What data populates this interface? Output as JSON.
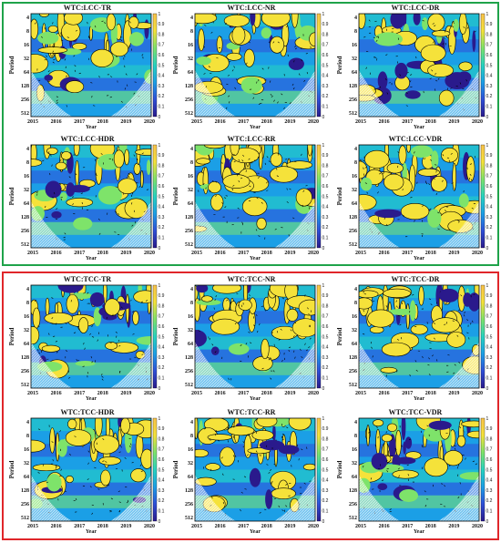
{
  "groups": [
    {
      "name": "LCC",
      "border_color": "#1fa34a"
    },
    {
      "name": "TCC",
      "border_color": "#e0262a"
    }
  ],
  "colors": {
    "colormap": [
      "#2a1a8c",
      "#2f4fd8",
      "#1c9fe6",
      "#27d3c0",
      "#7ee36a",
      "#f5e23a",
      "#f8c24a"
    ],
    "significance_contour": "#000000",
    "cone_of_influence_hatch": "#ffffff"
  },
  "chart_data": [
    {
      "type": "heatmap",
      "title": "WTC:LCC-TR",
      "xlabel": "Year",
      "ylabel": "Period",
      "x_ticks": [
        "2015",
        "2016",
        "2017",
        "2018",
        "2019",
        "2020"
      ],
      "y_ticks": [
        "4",
        "8",
        "16",
        "32",
        "64",
        "128",
        "256",
        "512"
      ],
      "y_scale": "log2",
      "colorbar_ticks": [
        "0",
        "0.1",
        "0.2",
        "0.3",
        "0.4",
        "0.5",
        "0.6",
        "0.7",
        "0.8",
        "0.9",
        "1"
      ],
      "zlim": [
        0,
        1
      ]
    },
    {
      "type": "heatmap",
      "title": "WTC:LCC-NR",
      "xlabel": "Year",
      "ylabel": "Period",
      "x_ticks": [
        "2015",
        "2016",
        "2017",
        "2018",
        "2019",
        "2020"
      ],
      "y_ticks": [
        "4",
        "8",
        "16",
        "32",
        "64",
        "128",
        "256",
        "512"
      ],
      "y_scale": "log2",
      "colorbar_ticks": [
        "0",
        "0.1",
        "0.2",
        "0.3",
        "0.4",
        "0.5",
        "0.6",
        "0.7",
        "0.8",
        "0.9",
        "1"
      ],
      "zlim": [
        0,
        1
      ]
    },
    {
      "type": "heatmap",
      "title": "WTC:LCC-DR",
      "xlabel": "Year",
      "ylabel": "Period",
      "x_ticks": [
        "2015",
        "2016",
        "2017",
        "2018",
        "2019",
        "2020"
      ],
      "y_ticks": [
        "4",
        "8",
        "16",
        "32",
        "64",
        "128",
        "256",
        "512"
      ],
      "y_scale": "log2",
      "colorbar_ticks": [
        "0",
        "0.1",
        "0.2",
        "0.3",
        "0.4",
        "0.5",
        "0.6",
        "0.7",
        "0.8",
        "0.9",
        "1"
      ],
      "zlim": [
        0,
        1
      ]
    },
    {
      "type": "heatmap",
      "title": "WTC:LCC-HDR",
      "xlabel": "Year",
      "ylabel": "Period",
      "x_ticks": [
        "2015",
        "2016",
        "2017",
        "2018",
        "2019",
        "2020"
      ],
      "y_ticks": [
        "4",
        "8",
        "16",
        "32",
        "64",
        "128",
        "256",
        "512"
      ],
      "y_scale": "log2",
      "colorbar_ticks": [
        "0",
        "0.1",
        "0.2",
        "0.3",
        "0.4",
        "0.5",
        "0.6",
        "0.7",
        "0.8",
        "0.9",
        "1"
      ],
      "zlim": [
        0,
        1
      ]
    },
    {
      "type": "heatmap",
      "title": "WTC:LCC-RR",
      "xlabel": "Year",
      "ylabel": "Period",
      "x_ticks": [
        "2015",
        "2016",
        "2017",
        "2018",
        "2019",
        "2020"
      ],
      "y_ticks": [
        "4",
        "8",
        "16",
        "32",
        "64",
        "128",
        "256",
        "512"
      ],
      "y_scale": "log2",
      "colorbar_ticks": [
        "0",
        "0.1",
        "0.2",
        "0.3",
        "0.4",
        "0.5",
        "0.6",
        "0.7",
        "0.8",
        "0.9",
        "1"
      ],
      "zlim": [
        0,
        1
      ]
    },
    {
      "type": "heatmap",
      "title": "WTC:LCC-VDR",
      "xlabel": "Year",
      "ylabel": "Period",
      "x_ticks": [
        "2015",
        "2016",
        "2017",
        "2018",
        "2019",
        "2020"
      ],
      "y_ticks": [
        "4",
        "8",
        "16",
        "32",
        "64",
        "128",
        "256",
        "512"
      ],
      "y_scale": "log2",
      "colorbar_ticks": [
        "0",
        "0.1",
        "0.2",
        "0.3",
        "0.4",
        "0.5",
        "0.6",
        "0.7",
        "0.8",
        "0.9",
        "1"
      ],
      "zlim": [
        0,
        1
      ]
    },
    {
      "type": "heatmap",
      "title": "WTC:TCC-TR",
      "xlabel": "Year",
      "ylabel": "Period",
      "x_ticks": [
        "2015",
        "2016",
        "2017",
        "2018",
        "2019",
        "2020"
      ],
      "y_ticks": [
        "4",
        "8",
        "16",
        "32",
        "64",
        "128",
        "256",
        "512"
      ],
      "y_scale": "log2",
      "colorbar_ticks": [
        "0",
        "0.1",
        "0.2",
        "0.3",
        "0.4",
        "0.5",
        "0.6",
        "0.7",
        "0.8",
        "0.9",
        "1"
      ],
      "zlim": [
        0,
        1
      ]
    },
    {
      "type": "heatmap",
      "title": "WTC:TCC-NR",
      "xlabel": "Year",
      "ylabel": "Period",
      "x_ticks": [
        "2015",
        "2016",
        "2017",
        "2018",
        "2019",
        "2020"
      ],
      "y_ticks": [
        "4",
        "8",
        "16",
        "32",
        "64",
        "128",
        "256",
        "512"
      ],
      "y_scale": "log2",
      "colorbar_ticks": [
        "0",
        "0.1",
        "0.2",
        "0.3",
        "0.4",
        "0.5",
        "0.6",
        "0.7",
        "0.8",
        "0.9",
        "1"
      ],
      "zlim": [
        0,
        1
      ]
    },
    {
      "type": "heatmap",
      "title": "WTC:TCC-DR",
      "xlabel": "Year",
      "ylabel": "Period",
      "x_ticks": [
        "2015",
        "2016",
        "2017",
        "2018",
        "2019",
        "2020"
      ],
      "y_ticks": [
        "4",
        "8",
        "16",
        "32",
        "64",
        "128",
        "256",
        "512"
      ],
      "y_scale": "log2",
      "colorbar_ticks": [
        "0",
        "0.1",
        "0.2",
        "0.3",
        "0.4",
        "0.5",
        "0.6",
        "0.7",
        "0.8",
        "0.9",
        "1"
      ],
      "zlim": [
        0,
        1
      ]
    },
    {
      "type": "heatmap",
      "title": "WTC:TCC-HDR",
      "xlabel": "Year",
      "ylabel": "Period",
      "x_ticks": [
        "2015",
        "2016",
        "2017",
        "2018",
        "2019",
        "2020"
      ],
      "y_ticks": [
        "4",
        "8",
        "16",
        "32",
        "64",
        "128",
        "256",
        "512"
      ],
      "y_scale": "log2",
      "colorbar_ticks": [
        "0",
        "0.1",
        "0.2",
        "0.3",
        "0.4",
        "0.5",
        "0.6",
        "0.7",
        "0.8",
        "0.9",
        "1"
      ],
      "zlim": [
        0,
        1
      ]
    },
    {
      "type": "heatmap",
      "title": "WTC:TCC-RR",
      "xlabel": "Year",
      "ylabel": "Period",
      "x_ticks": [
        "2015",
        "2016",
        "2017",
        "2018",
        "2019",
        "2020"
      ],
      "y_ticks": [
        "4",
        "8",
        "16",
        "32",
        "64",
        "128",
        "256",
        "512"
      ],
      "y_scale": "log2",
      "colorbar_ticks": [
        "0",
        "0.1",
        "0.2",
        "0.3",
        "0.4",
        "0.5",
        "0.6",
        "0.7",
        "0.8",
        "0.9",
        "1"
      ],
      "zlim": [
        0,
        1
      ]
    },
    {
      "type": "heatmap",
      "title": "WTC:TCC-VDR",
      "xlabel": "Year",
      "ylabel": "Period",
      "x_ticks": [
        "2015",
        "2016",
        "2017",
        "2018",
        "2019",
        "2020"
      ],
      "y_ticks": [
        "4",
        "8",
        "16",
        "32",
        "64",
        "128",
        "256",
        "512"
      ],
      "y_scale": "log2",
      "colorbar_ticks": [
        "0",
        "0.1",
        "0.2",
        "0.3",
        "0.4",
        "0.5",
        "0.6",
        "0.7",
        "0.8",
        "0.9",
        "1"
      ],
      "zlim": [
        0,
        1
      ]
    }
  ]
}
